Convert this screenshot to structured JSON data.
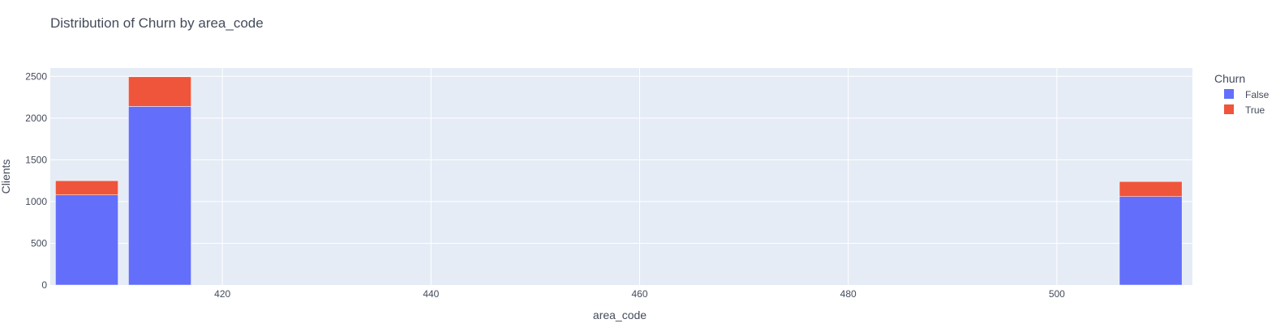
{
  "chart_data": {
    "type": "bar",
    "barmode": "stack",
    "title": "Distribution of Churn by area_code",
    "xlabel": "area_code",
    "ylabel": "Clients",
    "xlim": [
      403.5,
      513
    ],
    "ylim": [
      0,
      2600
    ],
    "x_ticks": [
      420,
      440,
      460,
      480,
      500
    ],
    "y_ticks": [
      0,
      500,
      1000,
      1500,
      2000,
      2500
    ],
    "bins": [
      {
        "x0": 404,
        "x1": 410
      },
      {
        "x0": 411,
        "x1": 417
      },
      {
        "x0": 506,
        "x1": 512
      }
    ],
    "series": [
      {
        "name": "False",
        "color": "#636efa",
        "values": [
          1080,
          2140,
          1060
        ]
      },
      {
        "name": "True",
        "color": "#ef553b",
        "values": [
          170,
          355,
          180
        ]
      }
    ],
    "legend": {
      "title": "Churn",
      "position": "top-right"
    },
    "grid": true,
    "plot_bgcolor": "#e5ecf6"
  }
}
